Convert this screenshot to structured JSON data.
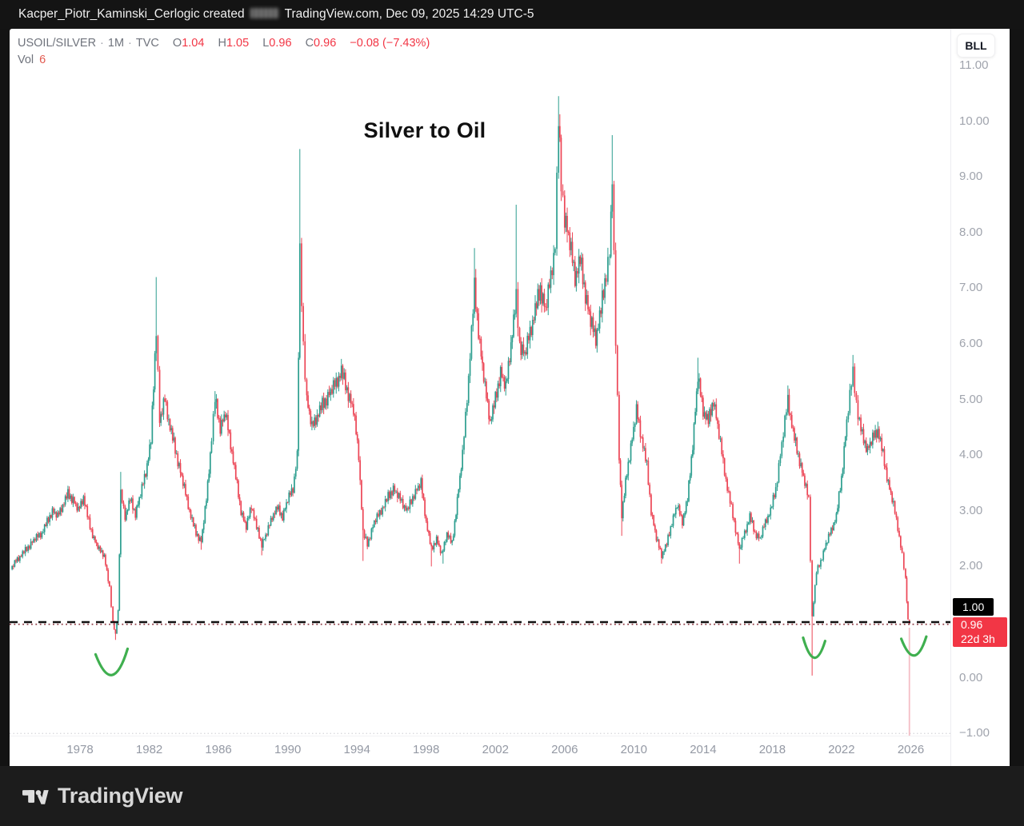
{
  "top_bar": {
    "prefix": "Kacper_Piotr_Kaminski_Cerlogic created",
    "suffix": "TradingView.com, Dec 09, 2025 14:29 UTC-5"
  },
  "header": {
    "symbol": "USOIL/SILVER",
    "sep": "·",
    "interval": "1M",
    "exchange": "TVC",
    "o_label": "O",
    "o": "1.04",
    "h_label": "H",
    "h": "1.05",
    "l_label": "L",
    "l": "0.96",
    "c_label": "C",
    "c": "0.96",
    "change": "−0.08 (−7.43%)",
    "vol_label": "Vol",
    "vol": "6"
  },
  "buttons": {
    "bll": "BLL"
  },
  "title": "Silver to Oil",
  "price_scale": {
    "line_badge": {
      "text": "1.00"
    },
    "price_badge": {
      "price": "0.96",
      "countdown": "22d 3h"
    }
  },
  "footer": {
    "brand": "TradingView"
  },
  "icons": {
    "logo": "tradingview-logo"
  },
  "colors": {
    "up": "#2d9e8f",
    "down": "#ec4656",
    "legend_red": "#f23645",
    "vol_red": "#e25a50",
    "dashed_line": "#111111",
    "price_line": "#8e3e48",
    "arc_green": "#3faf4f",
    "badge_black": "#000000",
    "badge_red": "#f23645",
    "dropline": "#f2aeb8",
    "baseline_dots": "#d6d6da"
  },
  "chart_data": {
    "type": "candlestick",
    "title": "Silver to Oil",
    "symbol": "USOIL/SILVER",
    "timeframe": "1M",
    "x_domain": [
      1973.93,
      2028.29
    ],
    "y_domain": [
      -1.04,
      11.66
    ],
    "up_color": "#2d9e8f",
    "down_color": "#ec4656",
    "horizontal_line": {
      "value": 1.0,
      "style": "dashed",
      "color": "#111111"
    },
    "price_line": {
      "value": 0.96,
      "style": "dotted",
      "color": "#8e3e48"
    },
    "baseline_dotted": {
      "value": -1.0,
      "color": "#d6d6da"
    },
    "last_candle": {
      "time": "2025-12",
      "open": 1.04,
      "high": 1.05,
      "low": 0.96,
      "close": 0.96
    },
    "dropline": {
      "year": 2025.92,
      "from": 0.9,
      "to": -1.04,
      "color": "#f2aeb8"
    },
    "arc_color": "#3faf4f",
    "arcs": [
      {
        "x1": 1978.9,
        "v1": 0.42,
        "xm": 1979.85,
        "vm": 0.05,
        "x2": 1980.75,
        "v2": 0.52
      },
      {
        "x1": 2019.78,
        "v1": 0.72,
        "xm": 2020.42,
        "vm": 0.36,
        "x2": 2021.05,
        "v2": 0.66
      },
      {
        "x1": 2025.45,
        "v1": 0.7,
        "xm": 2026.2,
        "vm": 0.4,
        "x2": 2026.9,
        "v2": 0.74
      }
    ],
    "x_axis": {
      "ticks": [
        {
          "year": 1978,
          "label": "1978"
        },
        {
          "year": 1982,
          "label": "1982"
        },
        {
          "year": 1986,
          "label": "1986"
        },
        {
          "year": 1990,
          "label": "1990"
        },
        {
          "year": 1994,
          "label": "1994"
        },
        {
          "year": 1998,
          "label": "1998"
        },
        {
          "year": 2002,
          "label": "2002"
        },
        {
          "year": 2006,
          "label": "2006"
        },
        {
          "year": 2010,
          "label": "2010"
        },
        {
          "year": 2014,
          "label": "2014"
        },
        {
          "year": 2018,
          "label": "2018"
        },
        {
          "year": 2022,
          "label": "2022"
        },
        {
          "year": 2026,
          "label": "2026"
        }
      ]
    },
    "y_axis": {
      "ticks": [
        {
          "value": 11,
          "label": "11.00"
        },
        {
          "value": 10,
          "label": "10.00"
        },
        {
          "value": 9,
          "label": "9.00"
        },
        {
          "value": 8,
          "label": "8.00"
        },
        {
          "value": 7,
          "label": "7.00"
        },
        {
          "value": 6,
          "label": "6.00"
        },
        {
          "value": 5,
          "label": "5.00"
        },
        {
          "value": 4,
          "label": "4.00"
        },
        {
          "value": 3,
          "label": "3.00"
        },
        {
          "value": 2,
          "label": "2.00"
        },
        {
          "value": 0,
          "label": "0.00"
        },
        {
          "value": -1,
          "label": "−1.00"
        }
      ]
    },
    "anchors": [
      [
        1974.0,
        1.95
      ],
      [
        1974.3,
        2.1
      ],
      [
        1974.6,
        2.2
      ],
      [
        1975.0,
        2.35
      ],
      [
        1975.4,
        2.5
      ],
      [
        1975.8,
        2.6
      ],
      [
        1976.1,
        2.8
      ],
      [
        1976.4,
        3.0
      ],
      [
        1976.7,
        2.9
      ],
      [
        1977.0,
        3.1
      ],
      [
        1977.3,
        3.3
      ],
      [
        1977.6,
        3.2
      ],
      [
        1977.9,
        3.0
      ],
      [
        1978.2,
        3.25
      ],
      [
        1978.5,
        2.8
      ],
      [
        1978.8,
        2.5
      ],
      [
        1979.1,
        2.3
      ],
      [
        1979.4,
        2.2
      ],
      [
        1979.7,
        1.6
      ],
      [
        1979.9,
        1.0
      ],
      [
        1980.05,
        0.78
      ],
      [
        1980.2,
        1.2
      ],
      [
        1980.35,
        3.3
      ],
      [
        1980.6,
        2.9
      ],
      [
        1980.9,
        3.2
      ],
      [
        1981.2,
        2.95
      ],
      [
        1981.5,
        3.3
      ],
      [
        1981.8,
        3.7
      ],
      [
        1982.1,
        4.25
      ],
      [
        1982.4,
        6.3
      ],
      [
        1982.6,
        4.6
      ],
      [
        1982.9,
        5.0
      ],
      [
        1983.2,
        4.5
      ],
      [
        1983.5,
        4.1
      ],
      [
        1983.8,
        3.7
      ],
      [
        1984.1,
        3.3
      ],
      [
        1984.4,
        2.9
      ],
      [
        1984.7,
        2.6
      ],
      [
        1985.0,
        2.45
      ],
      [
        1985.3,
        3.2
      ],
      [
        1985.6,
        4.3
      ],
      [
        1985.8,
        5.0
      ],
      [
        1986.1,
        4.5
      ],
      [
        1986.4,
        4.75
      ],
      [
        1986.7,
        4.2
      ],
      [
        1987.0,
        3.6
      ],
      [
        1987.3,
        3.0
      ],
      [
        1987.6,
        2.7
      ],
      [
        1987.9,
        3.1
      ],
      [
        1988.2,
        2.7
      ],
      [
        1988.5,
        2.4
      ],
      [
        1988.8,
        2.6
      ],
      [
        1989.1,
        2.9
      ],
      [
        1989.4,
        3.05
      ],
      [
        1989.7,
        2.9
      ],
      [
        1990.0,
        3.2
      ],
      [
        1990.3,
        3.4
      ],
      [
        1990.55,
        4.0
      ],
      [
        1990.7,
        7.6
      ],
      [
        1990.9,
        6.0
      ],
      [
        1991.1,
        5.0
      ],
      [
        1991.4,
        4.5
      ],
      [
        1991.7,
        4.7
      ],
      [
        1992.0,
        4.9
      ],
      [
        1992.4,
        5.1
      ],
      [
        1992.8,
        5.3
      ],
      [
        1993.1,
        5.5
      ],
      [
        1993.5,
        5.1
      ],
      [
        1993.8,
        4.8
      ],
      [
        1994.1,
        4.0
      ],
      [
        1994.35,
        2.6
      ],
      [
        1994.6,
        2.4
      ],
      [
        1995.0,
        2.8
      ],
      [
        1995.4,
        3.0
      ],
      [
        1995.8,
        3.25
      ],
      [
        1996.1,
        3.4
      ],
      [
        1996.5,
        3.2
      ],
      [
        1996.9,
        3.0
      ],
      [
        1997.3,
        3.3
      ],
      [
        1997.7,
        3.5
      ],
      [
        1998.0,
        2.8
      ],
      [
        1998.3,
        2.3
      ],
      [
        1998.6,
        2.5
      ],
      [
        1998.9,
        2.2
      ],
      [
        1999.2,
        2.6
      ],
      [
        1999.5,
        2.4
      ],
      [
        1999.8,
        3.2
      ],
      [
        2000.1,
        4.0
      ],
      [
        2000.45,
        5.4
      ],
      [
        2000.79,
        7.0
      ],
      [
        2001.1,
        6.0
      ],
      [
        2001.4,
        5.2
      ],
      [
        2001.7,
        4.6
      ],
      [
        2002.0,
        5.0
      ],
      [
        2002.3,
        5.5
      ],
      [
        2002.6,
        5.2
      ],
      [
        2002.9,
        6.0
      ],
      [
        2003.2,
        6.8
      ],
      [
        2003.4,
        6.0
      ],
      [
        2003.7,
        5.8
      ],
      [
        2004.0,
        6.2
      ],
      [
        2004.3,
        6.6
      ],
      [
        2004.6,
        7.0
      ],
      [
        2004.9,
        6.6
      ],
      [
        2005.2,
        7.2
      ],
      [
        2005.45,
        7.8
      ],
      [
        2005.65,
        10.0
      ],
      [
        2005.8,
        8.9
      ],
      [
        2006.0,
        8.3
      ],
      [
        2006.3,
        7.8
      ],
      [
        2006.6,
        7.2
      ],
      [
        2006.9,
        7.5
      ],
      [
        2007.2,
        6.9
      ],
      [
        2007.5,
        6.4
      ],
      [
        2007.8,
        6.1
      ],
      [
        2008.1,
        6.6
      ],
      [
        2008.4,
        7.3
      ],
      [
        2008.6,
        7.6
      ],
      [
        2008.75,
        9.0
      ],
      [
        2008.95,
        6.0
      ],
      [
        2009.15,
        4.0
      ],
      [
        2009.3,
        2.9
      ],
      [
        2009.6,
        3.7
      ],
      [
        2009.9,
        4.3
      ],
      [
        2010.15,
        4.8
      ],
      [
        2010.45,
        4.3
      ],
      [
        2010.75,
        3.8
      ],
      [
        2011.0,
        3.0
      ],
      [
        2011.3,
        2.5
      ],
      [
        2011.6,
        2.2
      ],
      [
        2011.9,
        2.4
      ],
      [
        2012.2,
        2.8
      ],
      [
        2012.5,
        3.1
      ],
      [
        2012.8,
        2.8
      ],
      [
        2013.1,
        3.2
      ],
      [
        2013.4,
        4.2
      ],
      [
        2013.7,
        5.4
      ],
      [
        2014.0,
        4.8
      ],
      [
        2014.3,
        4.6
      ],
      [
        2014.6,
        5.0
      ],
      [
        2015.0,
        4.2
      ],
      [
        2015.4,
        3.4
      ],
      [
        2015.8,
        2.8
      ],
      [
        2016.1,
        2.3
      ],
      [
        2016.4,
        2.6
      ],
      [
        2016.7,
        2.9
      ],
      [
        2017.0,
        2.6
      ],
      [
        2017.3,
        2.5
      ],
      [
        2017.6,
        2.8
      ],
      [
        2017.9,
        3.0
      ],
      [
        2018.2,
        3.4
      ],
      [
        2018.55,
        4.2
      ],
      [
        2018.9,
        5.0
      ],
      [
        2019.2,
        4.4
      ],
      [
        2019.5,
        4.0
      ],
      [
        2019.8,
        3.6
      ],
      [
        2020.1,
        3.2
      ],
      [
        2020.3,
        1.1
      ],
      [
        2020.55,
        1.9
      ],
      [
        2020.8,
        2.1
      ],
      [
        2021.1,
        2.4
      ],
      [
        2021.4,
        2.65
      ],
      [
        2021.7,
        2.9
      ],
      [
        2022.0,
        3.6
      ],
      [
        2022.3,
        4.6
      ],
      [
        2022.66,
        5.5
      ],
      [
        2022.95,
        4.7
      ],
      [
        2023.2,
        4.35
      ],
      [
        2023.5,
        4.1
      ],
      [
        2023.8,
        4.3
      ],
      [
        2024.1,
        4.45
      ],
      [
        2024.4,
        4.0
      ],
      [
        2024.7,
        3.5
      ],
      [
        2025.0,
        3.1
      ],
      [
        2025.25,
        2.7
      ],
      [
        2025.5,
        2.2
      ],
      [
        2025.7,
        1.75
      ],
      [
        2025.84,
        1.04
      ],
      [
        2025.92,
        0.96
      ]
    ],
    "wick_highs": [
      [
        1977.3,
        3.45
      ],
      [
        1980.35,
        3.7
      ],
      [
        1982.4,
        7.2
      ],
      [
        1985.8,
        5.15
      ],
      [
        1990.7,
        9.5
      ],
      [
        1993.1,
        5.62
      ],
      [
        2000.79,
        7.72
      ],
      [
        2003.2,
        8.5
      ],
      [
        2005.65,
        10.45
      ],
      [
        2008.75,
        9.75
      ],
      [
        2010.15,
        4.95
      ],
      [
        2013.7,
        5.75
      ],
      [
        2018.9,
        5.25
      ],
      [
        2022.66,
        5.8
      ],
      [
        2024.1,
        4.6
      ]
    ],
    "wick_lows": [
      [
        1980.05,
        0.68
      ],
      [
        1985.0,
        2.3
      ],
      [
        1988.5,
        2.2
      ],
      [
        1994.35,
        2.1
      ],
      [
        1998.3,
        2.0
      ],
      [
        1999.0,
        2.05
      ],
      [
        2009.3,
        2.55
      ],
      [
        2011.6,
        2.05
      ],
      [
        2016.1,
        2.05
      ],
      [
        2020.3,
        0.04
      ]
    ]
  }
}
